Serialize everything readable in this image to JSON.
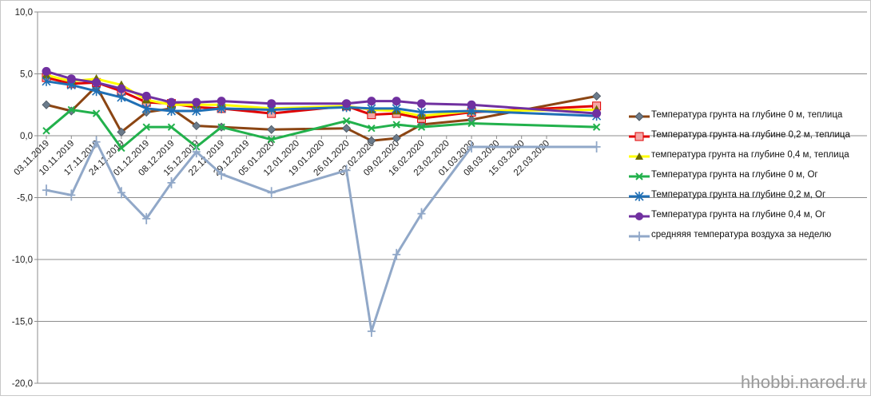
{
  "chart_data": {
    "type": "line",
    "categories": [
      "03.11.2019",
      "10.11.2019",
      "17.11.2019",
      "24.11.2019",
      "01.12.2019",
      "08.12.2019",
      "15.12.2019",
      "22.12.2019",
      "29.12.2019",
      "05.01.2020",
      "12.01.2020",
      "19.01.2020",
      "26.01.2020",
      "02.02.2020",
      "09.02.2020",
      "16.02.2020",
      "23.02.2020",
      "01.03.2020",
      "08.03.2020",
      "15.03.2020",
      "22.03.2020"
    ],
    "ylim": [
      -20,
      10
    ],
    "yticks": [
      10,
      5,
      0,
      -5,
      -10,
      -15,
      -20
    ],
    "ytick_labels": [
      "10,0",
      "5,0",
      "0,0",
      "-5,0",
      "-10,0",
      "-15,0",
      "-20,0"
    ],
    "grid": true,
    "legend_position": "right",
    "series": [
      {
        "name": "Температура  грунта на глубине 0 м, теплица",
        "color": "#8b4513",
        "marker": "diamond",
        "marker_color": "#6b7b8b",
        "points": [
          [
            0,
            2.5
          ],
          [
            1,
            2.0
          ],
          [
            2,
            4.0
          ],
          [
            3,
            0.3
          ],
          [
            4,
            1.9
          ],
          [
            5,
            2.2
          ],
          [
            6,
            0.8
          ],
          [
            7,
            0.7
          ],
          [
            9,
            0.5
          ],
          [
            12,
            0.6
          ],
          [
            13,
            -0.4
          ],
          [
            14,
            -0.2
          ],
          [
            15,
            0.9
          ],
          [
            17,
            1.3
          ],
          [
            22,
            3.2
          ]
        ]
      },
      {
        "name": "Температура  грунта на глубине 0,2 м, теплица",
        "color": "#e00000",
        "marker": "square",
        "marker_color": "#f0a0a0",
        "points": [
          [
            0,
            4.7
          ],
          [
            1,
            4.2
          ],
          [
            2,
            4.3
          ],
          [
            3,
            3.6
          ],
          [
            4,
            2.7
          ],
          [
            5,
            2.6
          ],
          [
            6,
            2.3
          ],
          [
            7,
            2.2
          ],
          [
            9,
            1.8
          ],
          [
            12,
            2.4
          ],
          [
            13,
            1.7
          ],
          [
            14,
            1.8
          ],
          [
            15,
            1.4
          ],
          [
            17,
            1.9
          ],
          [
            22,
            2.4
          ]
        ]
      },
      {
        "name": "температура  грунта на глубине 0,4 м, теплица",
        "color": "#ffff00",
        "marker": "triangle",
        "marker_color": "#7a7a00",
        "points": [
          [
            0,
            4.9
          ],
          [
            1,
            4.4
          ],
          [
            2,
            4.6
          ],
          [
            3,
            4.1
          ],
          [
            4,
            2.9
          ],
          [
            5,
            2.5
          ],
          [
            6,
            2.5
          ],
          [
            7,
            2.5
          ],
          [
            9,
            2.2
          ],
          [
            12,
            2.4
          ],
          [
            13,
            2.1
          ],
          [
            14,
            2.0
          ],
          [
            15,
            1.6
          ],
          [
            17,
            2.0
          ],
          [
            22,
            2.1
          ]
        ]
      },
      {
        "name": "Температура  грунта  на глубине 0 м, Ог",
        "color": "#22b14c",
        "marker": "x",
        "marker_color": "#22b14c",
        "points": [
          [
            0,
            0.4
          ],
          [
            1,
            2.1
          ],
          [
            2,
            1.8
          ],
          [
            3,
            -1.0
          ],
          [
            4,
            0.7
          ],
          [
            5,
            0.7
          ],
          [
            6,
            -0.9
          ],
          [
            7,
            0.7
          ],
          [
            9,
            -0.3
          ],
          [
            12,
            1.2
          ],
          [
            13,
            0.6
          ],
          [
            14,
            0.9
          ],
          [
            15,
            0.7
          ],
          [
            17,
            1.0
          ],
          [
            22,
            0.7
          ]
        ]
      },
      {
        "name": "Температура  грунта  на глубине 0,2 м, Ог",
        "color": "#1f6fb5",
        "marker": "star",
        "marker_color": "#1f6fb5",
        "points": [
          [
            0,
            4.4
          ],
          [
            1,
            4.1
          ],
          [
            2,
            3.6
          ],
          [
            3,
            3.1
          ],
          [
            4,
            2.2
          ],
          [
            5,
            2.0
          ],
          [
            6,
            2.0
          ],
          [
            7,
            2.2
          ],
          [
            9,
            2.1
          ],
          [
            12,
            2.3
          ],
          [
            13,
            2.2
          ],
          [
            14,
            2.2
          ],
          [
            15,
            1.9
          ],
          [
            17,
            2.0
          ],
          [
            22,
            1.6
          ]
        ]
      },
      {
        "name": "Температура  грунта  на глубине 0,4 м, Ог",
        "color": "#7030a0",
        "marker": "circle",
        "marker_color": "#7030a0",
        "points": [
          [
            0,
            5.2
          ],
          [
            1,
            4.6
          ],
          [
            2,
            4.3
          ],
          [
            3,
            3.8
          ],
          [
            4,
            3.2
          ],
          [
            5,
            2.7
          ],
          [
            6,
            2.7
          ],
          [
            7,
            2.8
          ],
          [
            9,
            2.6
          ],
          [
            12,
            2.6
          ],
          [
            13,
            2.8
          ],
          [
            14,
            2.8
          ],
          [
            15,
            2.6
          ],
          [
            17,
            2.5
          ],
          [
            22,
            1.8
          ]
        ]
      },
      {
        "name": "средняяя  температура воздуха за неделю",
        "color": "#91a8c8",
        "marker": "plus",
        "marker_color": "#91a8c8",
        "points": [
          [
            0,
            -4.4
          ],
          [
            1,
            -4.8
          ],
          [
            2,
            -0.5
          ],
          [
            3,
            -4.6
          ],
          [
            4,
            -6.7
          ],
          [
            5,
            -3.8
          ],
          [
            6,
            -1.3
          ],
          [
            7,
            -3.1
          ],
          [
            9,
            -4.6
          ],
          [
            12,
            -2.8
          ],
          [
            13,
            -15.8
          ],
          [
            14,
            -9.6
          ],
          [
            15,
            -6.3
          ],
          [
            17,
            -0.9
          ],
          [
            22,
            -0.9
          ]
        ]
      }
    ]
  },
  "watermark": "hhobbi.narod.ru"
}
